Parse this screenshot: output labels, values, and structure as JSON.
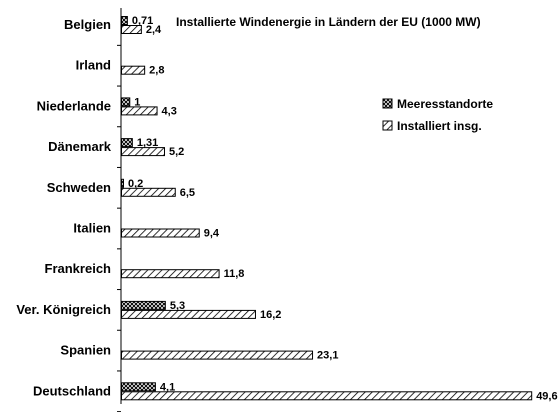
{
  "chart_data": {
    "type": "bar",
    "orientation": "horizontal",
    "title": "Installierte Windenergie in Ländern der EU (1000 MW)",
    "categories": [
      "Belgien",
      "Irland",
      "Niederlande",
      "Dänemark",
      "Schweden",
      "Italien",
      "Frankreich",
      "Ver. Königreich",
      "Spanien",
      "Deutschland"
    ],
    "series": [
      {
        "name": "Meeresstandorte",
        "pattern": "crosshatch",
        "values": [
          0.71,
          null,
          1,
          1.31,
          0.2,
          null,
          null,
          5.3,
          null,
          4.1
        ],
        "labels": [
          "0,71",
          "",
          "1",
          "1,31",
          "0,2",
          "",
          "",
          "5,3",
          "",
          "4,1"
        ]
      },
      {
        "name": "Installiert insg.",
        "pattern": "diagonal",
        "values": [
          2.4,
          2.8,
          4.3,
          5.2,
          6.5,
          9.4,
          11.8,
          16.2,
          23.1,
          49.6
        ],
        "labels": [
          "2,4",
          "2,8",
          "4,3",
          "5,2",
          "6,5",
          "9,4",
          "11,8",
          "16,2",
          "23,1",
          "49,6"
        ]
      }
    ],
    "xlim": [
      0,
      50
    ],
    "grid": false,
    "legend": "right"
  }
}
